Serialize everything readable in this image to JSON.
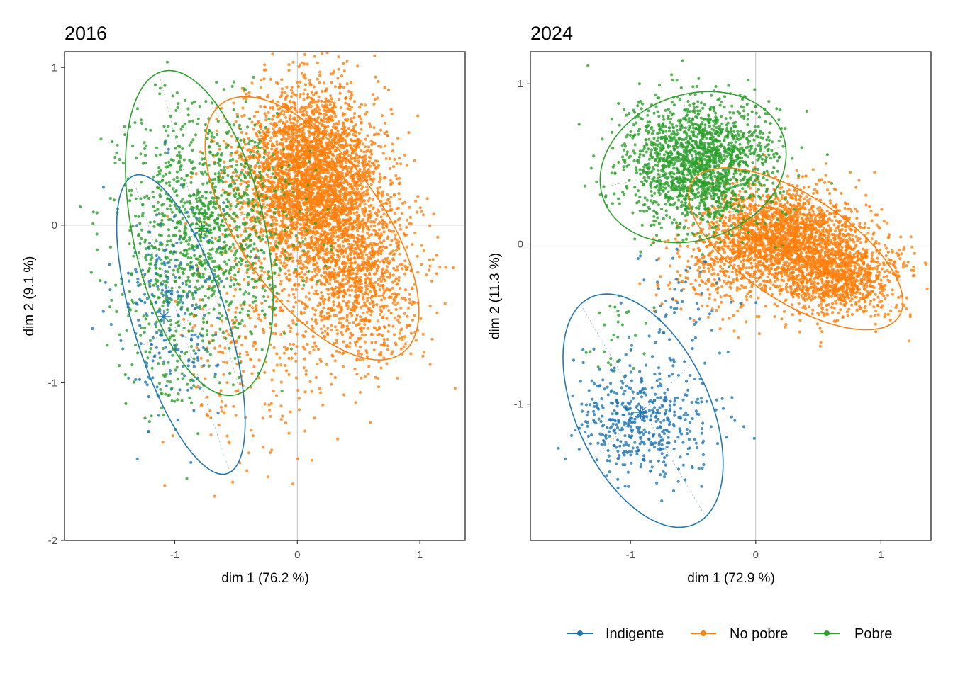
{
  "colors": {
    "Indigente": "#1f77b4",
    "No pobre": "#ff7f0e",
    "Pobre": "#2ca02c"
  },
  "legend": {
    "placement": "bottom-right",
    "items": [
      "Indigente",
      "No pobre",
      "Pobre"
    ]
  },
  "chart_data": [
    {
      "type": "scatter",
      "title": "2016",
      "xlabel": "dim 1 (76.2 %)",
      "ylabel": "dim 2 (9.1 %)",
      "xlim": [
        -1.9,
        1.37
      ],
      "ylim": [
        -2.0,
        1.1
      ],
      "xticks": [
        -1,
        0,
        1
      ],
      "xtick_labels": [
        "-1",
        "0",
        "1"
      ],
      "yticks": [
        -2,
        -1,
        0,
        1
      ],
      "ytick_labels": [
        "-2",
        "-1",
        "0",
        "1"
      ],
      "grid": false,
      "reference_lines": {
        "x": 0,
        "y": 0
      },
      "series": [
        {
          "name": "Indigente",
          "centroid": [
            -1.09,
            -0.58
          ],
          "ellipse": {
            "cx": -0.95,
            "cy": -0.63,
            "rx": 1.02,
            "ry": 0.37,
            "angle_deg": -67
          },
          "clusters": [
            {
              "x": -1.05,
              "y": -0.5,
              "sx": 0.22,
              "sy": 0.38,
              "n": 220
            }
          ]
        },
        {
          "name": "No pobre",
          "centroid": [
            0.08,
            0.05
          ],
          "ellipse": {
            "cx": 0.12,
            "cy": -0.02,
            "rx": 1.09,
            "ry": 0.52,
            "angle_deg": -43
          },
          "clusters": [
            {
              "x": 0.1,
              "y": 0.3,
              "sx": 0.28,
              "sy": 0.28,
              "n": 3400
            },
            {
              "x": 0.5,
              "y": -0.3,
              "sx": 0.25,
              "sy": 0.28,
              "n": 1200
            },
            {
              "x": -0.3,
              "y": -0.7,
              "sx": 0.3,
              "sy": 0.4,
              "n": 320
            }
          ]
        },
        {
          "name": "Pobre",
          "centroid": [
            -0.78,
            -0.02
          ],
          "ellipse": {
            "cx": -0.8,
            "cy": -0.05,
            "rx": 1.07,
            "ry": 0.53,
            "angle_deg": -72
          },
          "clusters": [
            {
              "x": -0.75,
              "y": 0.0,
              "sx": 0.35,
              "sy": 0.38,
              "n": 1100
            },
            {
              "x": -1.1,
              "y": -0.7,
              "sx": 0.2,
              "sy": 0.35,
              "n": 150
            }
          ]
        }
      ]
    },
    {
      "type": "scatter",
      "title": "2024",
      "xlabel": "dim 1 (72.9 %)",
      "ylabel": "dim 2 (11.3 %)",
      "xlim": [
        -1.8,
        1.4
      ],
      "ylim": [
        -1.85,
        1.2
      ],
      "xticks": [
        -1,
        0,
        1
      ],
      "xtick_labels": [
        "-1",
        "0",
        "1"
      ],
      "yticks": [
        -1,
        0,
        1
      ],
      "ytick_labels": [
        "-1",
        "0",
        "1"
      ],
      "grid": false,
      "reference_lines": {
        "x": 0,
        "y": 0
      },
      "series": [
        {
          "name": "Indigente",
          "centroid": [
            -0.92,
            -1.05
          ],
          "ellipse": {
            "cx": -0.9,
            "cy": -1.04,
            "rx": 0.83,
            "ry": 0.5,
            "angle_deg": -53
          },
          "clusters": [
            {
              "x": -0.9,
              "y": -1.1,
              "sx": 0.28,
              "sy": 0.17,
              "n": 480
            },
            {
              "x": -0.6,
              "y": -0.4,
              "sx": 0.22,
              "sy": 0.15,
              "n": 60
            }
          ]
        },
        {
          "name": "No pobre",
          "centroid": [
            0.25,
            -0.02
          ],
          "ellipse": {
            "cx": 0.32,
            "cy": -0.03,
            "rx": 0.93,
            "ry": 0.35,
            "angle_deg": -25
          },
          "clusters": [
            {
              "x": 0.2,
              "y": 0.05,
              "sx": 0.3,
              "sy": 0.15,
              "n": 2000
            },
            {
              "x": 0.65,
              "y": -0.2,
              "sx": 0.25,
              "sy": 0.13,
              "n": 1100
            },
            {
              "x": -0.3,
              "y": -0.2,
              "sx": 0.25,
              "sy": 0.15,
              "n": 200
            }
          ]
        },
        {
          "name": "Pobre",
          "centroid": [
            -0.5,
            0.5
          ],
          "ellipse": {
            "cx": -0.5,
            "cy": 0.48,
            "rx": 0.75,
            "ry": 0.46,
            "angle_deg": 10
          },
          "clusters": [
            {
              "x": -0.45,
              "y": 0.52,
              "sx": 0.3,
              "sy": 0.2,
              "n": 1700
            },
            {
              "x": -1.1,
              "y": -0.6,
              "sx": 0.15,
              "sy": 0.15,
              "n": 30
            }
          ]
        }
      ]
    }
  ]
}
